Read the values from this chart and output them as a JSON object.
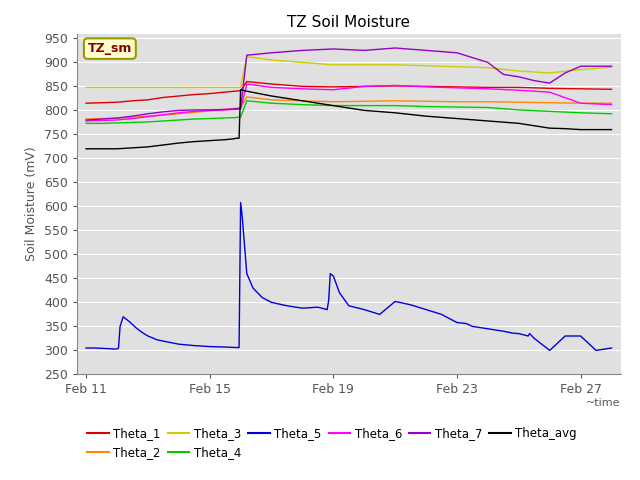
{
  "title": "TZ Soil Moisture",
  "ylabel": "Soil Moisture (mV)",
  "xlabel": "~time",
  "ylim": [
    250,
    960
  ],
  "yticks": [
    250,
    300,
    350,
    400,
    450,
    500,
    550,
    600,
    650,
    700,
    750,
    800,
    850,
    900,
    950
  ],
  "background_color": "#e8e8e8",
  "plot_bg_color": "#e0e0e0",
  "legend_label": "TZ_sm",
  "series": {
    "Theta_1": {
      "color": "#dd0000",
      "x": [
        0,
        0.5,
        1,
        1.5,
        2,
        2.5,
        3,
        3.5,
        4,
        4.8,
        5.0,
        5.2,
        6,
        7,
        8,
        9,
        10,
        11,
        12,
        13,
        14,
        15,
        16,
        17
      ],
      "y": [
        815,
        816,
        817,
        820,
        822,
        827,
        830,
        833,
        835,
        840,
        841,
        860,
        855,
        850,
        849,
        850,
        851,
        850,
        849,
        848,
        848,
        846,
        845,
        844
      ]
    },
    "Theta_2": {
      "color": "#ff8800",
      "x": [
        0,
        0.5,
        1,
        1.5,
        2,
        2.5,
        3,
        3.5,
        4,
        4.8,
        5.0,
        5.2,
        6,
        7,
        8,
        9,
        10,
        11,
        12,
        13,
        14,
        15,
        16,
        17
      ],
      "y": [
        782,
        783,
        784,
        786,
        788,
        790,
        793,
        796,
        799,
        804,
        806,
        828,
        822,
        820,
        818,
        819,
        820,
        819,
        818,
        818,
        817,
        816,
        815,
        815
      ]
    },
    "Theta_3": {
      "color": "#cccc00",
      "x": [
        0,
        1,
        2,
        3,
        4,
        4.8,
        5.0,
        5.2,
        6,
        7,
        8,
        9,
        10,
        11,
        12,
        13,
        14,
        15,
        16,
        17
      ],
      "y": [
        848,
        848,
        848,
        848,
        848,
        848,
        848,
        912,
        905,
        900,
        895,
        895,
        895,
        893,
        891,
        889,
        882,
        878,
        885,
        890
      ]
    },
    "Theta_4": {
      "color": "#00cc00",
      "x": [
        0,
        0.5,
        1,
        1.5,
        2,
        2.5,
        3,
        3.5,
        4,
        4.8,
        5.0,
        5.2,
        6,
        7,
        8,
        9,
        10,
        11,
        12,
        13,
        14,
        15,
        16,
        17
      ],
      "y": [
        773,
        773,
        774,
        775,
        776,
        778,
        780,
        782,
        783,
        785,
        786,
        820,
        815,
        812,
        810,
        810,
        810,
        808,
        807,
        806,
        801,
        798,
        795,
        793
      ]
    },
    "Theta_5": {
      "color": "#0000dd",
      "x": [
        0,
        0.3,
        0.6,
        0.9,
        1.0,
        1.05,
        1.1,
        1.2,
        1.4,
        1.6,
        1.8,
        2.0,
        2.3,
        2.6,
        3.0,
        3.5,
        4.0,
        4.5,
        4.85,
        4.9,
        4.95,
        5.0,
        5.05,
        5.1,
        5.2,
        5.4,
        5.7,
        6.0,
        6.5,
        7.0,
        7.5,
        7.8,
        7.85,
        7.9,
        8.0,
        8.2,
        8.5,
        9.0,
        9.5,
        10.0,
        10.5,
        11.0,
        11.5,
        12.0,
        12.3,
        12.5,
        13.0,
        13.5,
        13.8,
        14.0,
        14.3,
        14.35,
        14.5,
        15.0,
        15.5,
        16.0,
        16.5,
        17.0
      ],
      "y": [
        305,
        305,
        304,
        303,
        303,
        305,
        350,
        370,
        360,
        348,
        338,
        330,
        322,
        318,
        313,
        310,
        308,
        307,
        306,
        306,
        306,
        608,
        580,
        540,
        460,
        430,
        410,
        400,
        393,
        388,
        390,
        385,
        405,
        460,
        455,
        420,
        393,
        385,
        375,
        402,
        395,
        385,
        375,
        358,
        356,
        350,
        345,
        340,
        336,
        335,
        330,
        335,
        325,
        300,
        330,
        330,
        300,
        305
      ]
    },
    "Theta_6": {
      "color": "#ff00ff",
      "x": [
        0,
        0.5,
        1,
        1.5,
        2,
        2.5,
        3,
        3.5,
        4,
        4.5,
        4.8,
        5.0,
        5.2,
        6,
        7,
        8,
        9,
        10,
        11,
        12,
        13,
        14,
        15,
        16,
        17
      ],
      "y": [
        778,
        779,
        780,
        783,
        787,
        791,
        795,
        798,
        800,
        801,
        802,
        803,
        855,
        848,
        845,
        843,
        850,
        852,
        849,
        847,
        845,
        842,
        838,
        815,
        812
      ]
    },
    "Theta_7": {
      "color": "#9900cc",
      "x": [
        0,
        0.5,
        1,
        1.5,
        2,
        2.5,
        3,
        3.5,
        4,
        4.5,
        4.8,
        5.0,
        5.2,
        6,
        7,
        8,
        9,
        10,
        11,
        12,
        13,
        13.5,
        14,
        14.5,
        15,
        15.5,
        16,
        17
      ],
      "y": [
        780,
        782,
        784,
        788,
        793,
        797,
        800,
        801,
        801,
        802,
        803,
        804,
        915,
        920,
        925,
        928,
        925,
        930,
        925,
        920,
        900,
        875,
        870,
        862,
        857,
        878,
        892,
        892
      ]
    },
    "Theta_avg": {
      "color": "#000000",
      "x": [
        0,
        0.5,
        1,
        1.5,
        2,
        2.5,
        3,
        3.5,
        4,
        4.5,
        4.8,
        4.85,
        4.9,
        4.95,
        5.0,
        5.2,
        6,
        7,
        8,
        9,
        10,
        11,
        12,
        13,
        14,
        15,
        15.5,
        16,
        17
      ],
      "y": [
        720,
        720,
        720,
        722,
        724,
        728,
        732,
        735,
        737,
        739,
        741,
        742,
        742,
        742,
        843,
        840,
        830,
        820,
        810,
        800,
        795,
        788,
        783,
        778,
        773,
        763,
        762,
        760,
        760
      ]
    }
  },
  "legend_order": [
    "Theta_1",
    "Theta_2",
    "Theta_3",
    "Theta_4",
    "Theta_5",
    "Theta_6",
    "Theta_7",
    "Theta_avg"
  ]
}
